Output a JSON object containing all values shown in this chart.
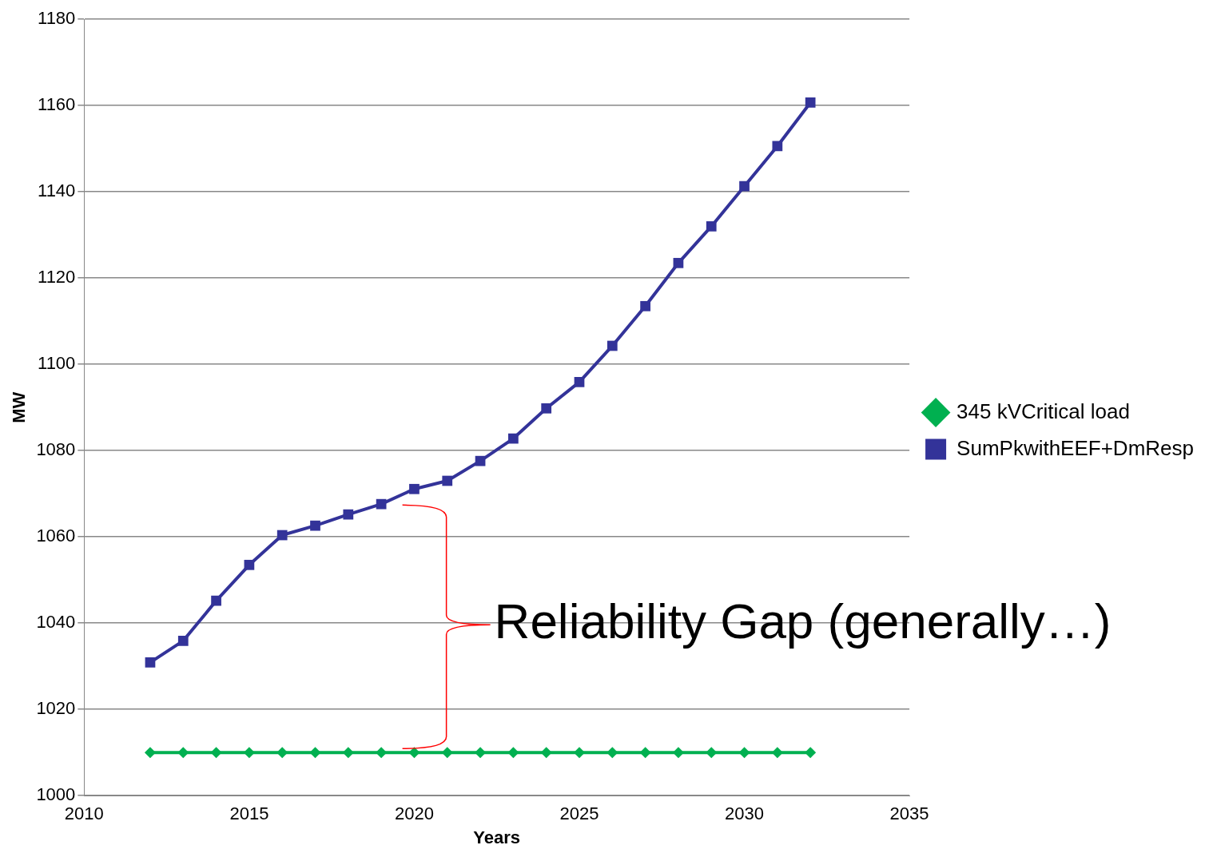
{
  "chart_data": {
    "type": "line",
    "xlabel": "Years",
    "ylabel": "MW",
    "x": [
      2012,
      2013,
      2014,
      2015,
      2016,
      2017,
      2018,
      2019,
      2020,
      2021,
      2022,
      2023,
      2024,
      2025,
      2026,
      2027,
      2028,
      2029,
      2030,
      2031,
      2032
    ],
    "series": [
      {
        "name": "345 kVCritical load",
        "color": "#00b050",
        "marker": "diamond",
        "values": [
          1010,
          1010,
          1010,
          1010,
          1010,
          1010,
          1010,
          1010,
          1010,
          1010,
          1010,
          1010,
          1010,
          1010,
          1010,
          1010,
          1010,
          1010,
          1010,
          1010,
          1010
        ]
      },
      {
        "name": "SumPkwithEEF+DmResp",
        "color": "#333399",
        "marker": "square",
        "values": [
          1030.9,
          1035.9,
          1045.2,
          1053.5,
          1060.4,
          1062.6,
          1065.2,
          1067.6,
          1071.1,
          1073.0,
          1077.6,
          1082.8,
          1089.8,
          1095.9,
          1104.3,
          1113.5,
          1123.5,
          1132.0,
          1141.3,
          1150.6,
          1160.7
        ]
      }
    ],
    "xlim": [
      2010,
      2035
    ],
    "xticks": [
      2010,
      2015,
      2020,
      2025,
      2030,
      2035
    ],
    "ylim": [
      1000,
      1180
    ],
    "yticks": [
      1000,
      1020,
      1040,
      1060,
      1080,
      1100,
      1120,
      1140,
      1160,
      1180
    ],
    "grid": "y",
    "legend": "right",
    "line_style": "solid",
    "annotations": [
      "Reliability Gap (generally…)"
    ]
  }
}
